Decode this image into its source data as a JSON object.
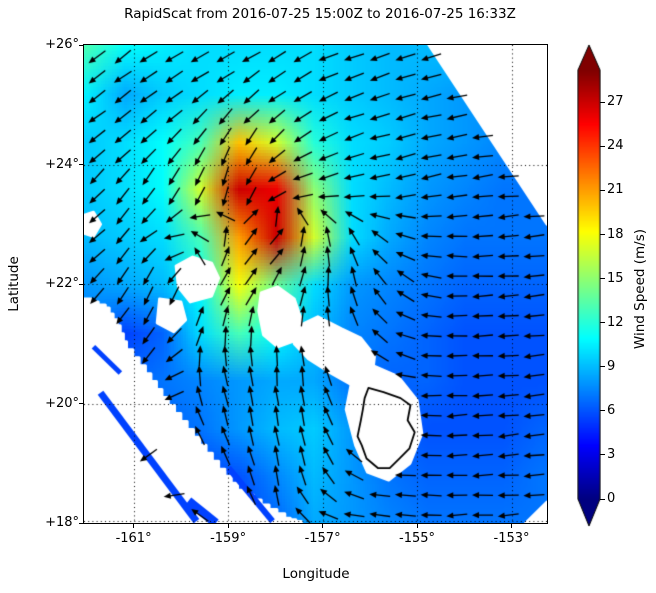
{
  "title": "RapidScat  from 2016-07-25 15:00Z to 2016-07-25 16:33Z",
  "axes": {
    "xlabel": "Longitude",
    "ylabel": "Latitude",
    "x_ticks": [
      {
        "lon": -161,
        "label": "-161°"
      },
      {
        "lon": -159,
        "label": "-159°"
      },
      {
        "lon": -157,
        "label": "-157°"
      },
      {
        "lon": -155,
        "label": "-155°"
      },
      {
        "lon": -153,
        "label": "-153°"
      }
    ],
    "y_ticks": [
      {
        "lat": 26,
        "label": "+26°"
      },
      {
        "lat": 24,
        "label": "+24°"
      },
      {
        "lat": 22,
        "label": "+22°"
      },
      {
        "lat": 20,
        "label": "+20°"
      },
      {
        "lat": 18,
        "label": "+18°"
      }
    ]
  },
  "colorbar": {
    "label": "Wind Speed (m/s)",
    "ticks": [
      0,
      3,
      6,
      9,
      12,
      15,
      18,
      21,
      24,
      27
    ],
    "vmin": 0,
    "vmax": 29.2,
    "extend": "both",
    "colormap": "jet"
  },
  "chart_data": {
    "type": "heatmap",
    "subtype": "heatmap+quiver",
    "variable": "wind speed (m/s)",
    "title": "RapidScat  from 2016-07-25 15:00Z to 2016-07-25 16:33Z",
    "xlabel": "Longitude",
    "ylabel": "Latitude",
    "lon_range": [
      -162.05,
      -152.25
    ],
    "lat_range": [
      18,
      26
    ],
    "vmin": 0,
    "vmax": 29.2,
    "grid_lons": [
      -162,
      -161.2,
      -160.4,
      -159.6,
      -158.8,
      -158,
      -157.2,
      -156.4,
      -155.6,
      -154.8,
      -154,
      -153.2,
      -152.4
    ],
    "grid_lats": [
      18,
      18.8,
      19.6,
      20.4,
      21.2,
      22,
      22.8,
      23.6,
      24.4,
      25.2,
      26
    ],
    "wind_speed_ms": [
      [
        4,
        4.5,
        5,
        5,
        5.5,
        6.5,
        8.5,
        8,
        7.5,
        7,
        7,
        7,
        7
      ],
      [
        4.5,
        5,
        5.5,
        5.5,
        6,
        7.5,
        9,
        8,
        7,
        6.5,
        6.5,
        6.5,
        7
      ],
      [
        5.5,
        6,
        6.5,
        7,
        8,
        9,
        9.5,
        8,
        6.5,
        6,
        6,
        6,
        6.5
      ],
      [
        6,
        6.5,
        7,
        7.5,
        8,
        8.5,
        8.5,
        7,
        6.5,
        6.5,
        6,
        6,
        6
      ],
      [
        7,
        5.5,
        6.5,
        10,
        13,
        11,
        9,
        7.5,
        7,
        6.5,
        6,
        6,
        6
      ],
      [
        8,
        8.5,
        9,
        11,
        18,
        14,
        10,
        8,
        7.5,
        7,
        6.5,
        6.5,
        6.5
      ],
      [
        9,
        9.5,
        10,
        13,
        21,
        27,
        17,
        10,
        8.5,
        7.5,
        7,
        7,
        7
      ],
      [
        9.5,
        10,
        11,
        17,
        27,
        26,
        15,
        10,
        9,
        8,
        7.5,
        7,
        7
      ],
      [
        9.5,
        10,
        11,
        13,
        20,
        17,
        12,
        10,
        9.5,
        8.5,
        8,
        7.5,
        7.5
      ],
      [
        10.5,
        8.5,
        9.5,
        10,
        10.5,
        10.5,
        10,
        9.5,
        9,
        8.5,
        8,
        8,
        8
      ],
      [
        13,
        11,
        10.5,
        10,
        10,
        10,
        10,
        9.5,
        9,
        9,
        9,
        8,
        8
      ]
    ],
    "wind_dir_deg_ccw_from_east": [
      [
        190,
        195,
        200,
        150,
        130,
        110,
        150,
        175,
        178,
        180,
        182,
        183,
        184
      ],
      [
        200,
        205,
        210,
        130,
        110,
        100,
        110,
        150,
        175,
        180,
        182,
        184,
        185
      ],
      [
        210,
        215,
        225,
        115,
        105,
        100,
        105,
        130,
        170,
        180,
        183,
        185,
        185
      ],
      [
        220,
        225,
        235,
        100,
        100,
        95,
        100,
        120,
        160,
        178,
        182,
        185,
        185
      ],
      [
        230,
        235,
        240,
        70,
        90,
        85,
        95,
        115,
        150,
        175,
        182,
        185,
        185
      ],
      [
        225,
        235,
        250,
        70,
        50,
        60,
        80,
        100,
        130,
        170,
        180,
        184,
        185
      ],
      [
        220,
        230,
        210,
        150,
        60,
        45,
        90,
        120,
        150,
        175,
        182,
        184,
        185
      ],
      [
        225,
        230,
        240,
        250,
        255,
        210,
        195,
        195,
        192,
        190,
        188,
        186,
        185
      ],
      [
        215,
        218,
        222,
        235,
        240,
        225,
        205,
        198,
        195,
        192,
        190,
        188,
        188
      ],
      [
        218,
        218,
        215,
        215,
        218,
        215,
        208,
        200,
        196,
        193,
        190,
        190,
        190
      ],
      [
        215,
        215,
        212,
        210,
        210,
        208,
        204,
        200,
        198,
        195,
        194,
        193,
        192
      ]
    ],
    "gridline_lons": [
      -161,
      -159,
      -157,
      -155,
      -153
    ],
    "gridline_lats": [
      20,
      22,
      24
    ],
    "arrow_color": "#000000",
    "white_masks": [
      {
        "name": "swath-edge-right",
        "step": true,
        "points": [
          [
            -154.75,
            26
          ],
          [
            -152.25,
            26
          ],
          [
            -152.25,
            23.0
          ]
        ]
      },
      {
        "name": "swath-edge-left",
        "step": true,
        "points": [
          [
            -162.05,
            21.75
          ],
          [
            -161.6,
            21.6
          ],
          [
            -161.35,
            21.3
          ],
          [
            -161.15,
            20.9
          ],
          [
            -160.75,
            20.5
          ],
          [
            -160.4,
            20.1
          ],
          [
            -160.0,
            19.7
          ],
          [
            -159.6,
            19.3
          ],
          [
            -159.2,
            18.9
          ],
          [
            -158.8,
            18.55
          ],
          [
            -158.3,
            18.3
          ],
          [
            -157.8,
            18.08
          ],
          [
            -157.45,
            18.0
          ],
          [
            -162.05,
            18.0
          ]
        ]
      },
      {
        "name": "corner-bottom-right",
        "step": false,
        "points": [
          [
            -152.7,
            18.0
          ],
          [
            -152.25,
            18.0
          ],
          [
            -152.25,
            18.35
          ]
        ]
      },
      {
        "name": "kauai-niihau",
        "step": false,
        "points": [
          [
            -160.1,
            22.3
          ],
          [
            -159.75,
            22.45
          ],
          [
            -159.35,
            22.35
          ],
          [
            -159.2,
            22.1
          ],
          [
            -159.35,
            21.8
          ],
          [
            -159.8,
            21.7
          ],
          [
            -160.05,
            21.95
          ]
        ]
      },
      {
        "name": "data-gap-west",
        "step": false,
        "points": [
          [
            -162.05,
            23.15
          ],
          [
            -161.85,
            23.2
          ],
          [
            -161.7,
            23.0
          ],
          [
            -161.85,
            22.8
          ],
          [
            -162.05,
            22.85
          ]
        ]
      },
      {
        "name": "data-gap-southwest",
        "step": false,
        "points": [
          [
            -160.45,
            21.75
          ],
          [
            -160.0,
            21.7
          ],
          [
            -159.9,
            21.4
          ],
          [
            -160.15,
            21.2
          ],
          [
            -160.5,
            21.35
          ]
        ]
      },
      {
        "name": "oahu",
        "step": false,
        "points": [
          [
            -158.3,
            21.85
          ],
          [
            -157.95,
            21.95
          ],
          [
            -157.6,
            21.75
          ],
          [
            -157.45,
            21.4
          ],
          [
            -157.6,
            21.05
          ],
          [
            -157.95,
            20.95
          ],
          [
            -158.25,
            21.15
          ],
          [
            -158.35,
            21.55
          ]
        ]
      },
      {
        "name": "maui-nui",
        "step": false,
        "points": [
          [
            -157.5,
            21.3
          ],
          [
            -157.1,
            21.45
          ],
          [
            -156.6,
            21.25
          ],
          [
            -156.2,
            21.1
          ],
          [
            -155.9,
            20.8
          ],
          [
            -155.95,
            20.45
          ],
          [
            -156.35,
            20.3
          ],
          [
            -156.8,
            20.5
          ],
          [
            -157.3,
            20.75
          ],
          [
            -157.6,
            21.0
          ]
        ]
      },
      {
        "name": "big-island-mask",
        "step": false,
        "points": [
          [
            -156.35,
            20.5
          ],
          [
            -155.9,
            20.62
          ],
          [
            -155.4,
            20.45
          ],
          [
            -155.0,
            20.05
          ],
          [
            -154.9,
            19.5
          ],
          [
            -155.15,
            19.0
          ],
          [
            -155.6,
            18.72
          ],
          [
            -156.05,
            18.85
          ],
          [
            -156.3,
            19.3
          ],
          [
            -156.5,
            19.9
          ]
        ]
      }
    ],
    "coastline_big_island": [
      [
        -156.03,
        20.26
      ],
      [
        -155.71,
        20.19
      ],
      [
        -155.35,
        20.09
      ],
      [
        -155.14,
        19.97
      ],
      [
        -155.2,
        19.72
      ],
      [
        -155.05,
        19.52
      ],
      [
        -155.16,
        19.25
      ],
      [
        -155.37,
        19.08
      ],
      [
        -155.58,
        18.92
      ],
      [
        -155.83,
        18.92
      ],
      [
        -156.07,
        19.08
      ],
      [
        -156.17,
        19.3
      ],
      [
        -156.26,
        19.45
      ],
      [
        -156.19,
        19.72
      ],
      [
        -156.15,
        19.89
      ],
      [
        -156.11,
        20.09
      ]
    ],
    "swath_stripes": [
      {
        "from": [
          -161.7,
          20.18
        ],
        "to": [
          -159.67,
          18.03
        ],
        "width": 7
      },
      {
        "from": [
          -158.99,
          18.92
        ],
        "to": [
          -158.06,
          18.03
        ],
        "width": 6
      },
      {
        "from": [
          -161.85,
          20.95
        ],
        "to": [
          -161.28,
          20.51
        ],
        "width": 5
      },
      {
        "from": [
          -159.84,
          18.37
        ],
        "to": [
          -159.26,
          18.0
        ],
        "width": 9
      }
    ],
    "stripe_speed_value": 5.5
  }
}
